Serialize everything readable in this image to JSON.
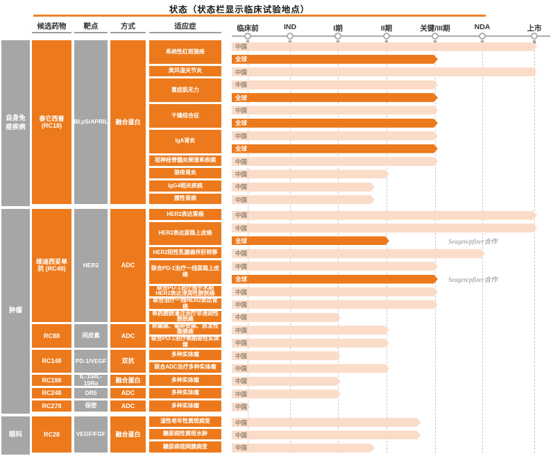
{
  "chart_data": {
    "type": "bar",
    "subtype": "clinical-pipeline-gantt",
    "title": "状态（状态栏显示临床试验地点）",
    "columns": {
      "drug": "候选药物",
      "target": "靶点",
      "modality": "方式",
      "indication": "适应症"
    },
    "stages": [
      "临床前",
      "IND",
      "I期",
      "II期",
      "关键/III期",
      "NDA",
      "上市"
    ],
    "region_labels": {
      "china": "中国",
      "global": "全球"
    },
    "partnership_note": "Seagen/pfizer合作",
    "colors": {
      "accent_orange": "#EC7A1C",
      "light_bar": "#FBDCC8",
      "gray": "#A6A6A6",
      "title_rule": "#F08229",
      "note_gray": "#8C8C8C"
    },
    "axis": {
      "min_stage": 0,
      "max_stage": 6,
      "grid": "dashed-vertical"
    },
    "sections": [
      {
        "category": "自身免疫疾病",
        "groups": [
          {
            "drug": "泰它西普 (RC18)",
            "target": "BLyS/APRIL",
            "modality": "融合蛋白",
            "indications": [
              {
                "name": "系统性红斑狼疮",
                "bars": [
                  {
                    "region": "中国",
                    "style": "light",
                    "stage": 6,
                    "status": "上市"
                  },
                  {
                    "region": "全球",
                    "style": "dark",
                    "stage": 4,
                    "status": "关键/III期"
                  }
                ]
              },
              {
                "name": "类风湿关节炎",
                "bars": [
                  {
                    "region": "中国",
                    "style": "light",
                    "stage": 6,
                    "status": "上市"
                  }
                ]
              },
              {
                "name": "重症肌无力",
                "bars": [
                  {
                    "region": "中国",
                    "style": "light",
                    "stage": 4,
                    "status": "关键/III期"
                  },
                  {
                    "region": "全球",
                    "style": "dark",
                    "stage": 4,
                    "status": "关键/III期"
                  }
                ]
              },
              {
                "name": "干燥综合征",
                "bars": [
                  {
                    "region": "中国",
                    "style": "light",
                    "stage": 4,
                    "status": "关键/III期"
                  },
                  {
                    "region": "全球",
                    "style": "dark",
                    "stage": 4,
                    "status": "关键/III期"
                  }
                ]
              },
              {
                "name": "IgA肾炎",
                "bars": [
                  {
                    "region": "中国",
                    "style": "light",
                    "stage": 4,
                    "status": "关键/III期"
                  },
                  {
                    "region": "全球",
                    "style": "dark",
                    "stage": 4,
                    "status": "关键/III期"
                  }
                ]
              },
              {
                "name": "视神经脊髓炎频谱系疾病",
                "bars": [
                  {
                    "region": "中国",
                    "style": "light",
                    "stage": 4,
                    "status": "关键/III期"
                  }
                ]
              },
              {
                "name": "狼疮肾炎",
                "bars": [
                  {
                    "region": "中国",
                    "style": "light",
                    "stage": 3,
                    "status": "II期"
                  }
                ]
              },
              {
                "name": "IgG4相关疾病",
                "bars": [
                  {
                    "region": "中国",
                    "style": "light",
                    "stage": 2.7,
                    "status": "I期-II期"
                  }
                ]
              },
              {
                "name": "膜性肾病",
                "bars": [
                  {
                    "region": "中国",
                    "style": "light",
                    "stage": 2.7,
                    "status": "I期-II期"
                  }
                ]
              }
            ]
          }
        ]
      },
      {
        "category": "肿瘤",
        "groups": [
          {
            "drug": "维迪西妥单抗 (RC48)",
            "target": "HER2",
            "modality": "ADC",
            "indications": [
              {
                "name": "HER2表达胃癌",
                "bars": [
                  {
                    "region": "中国",
                    "style": "light",
                    "stage": 6,
                    "status": "上市"
                  }
                ]
              },
              {
                "name": "HER2表达尿路上皮癌",
                "bars": [
                  {
                    "region": "中国",
                    "style": "light",
                    "stage": 6,
                    "status": "上市"
                  },
                  {
                    "region": "全球",
                    "style": "dark",
                    "stage": 3,
                    "status": "II期",
                    "note": "Seagen/pfizer合作"
                  }
                ]
              },
              {
                "name": "HER2阳性乳腺癌伴肝转移",
                "bars": [
                  {
                    "region": "中国",
                    "style": "light",
                    "stage": 5,
                    "status": "NDA"
                  }
                ]
              },
              {
                "name": "联合PD-1治疗一线尿路上皮癌",
                "bars": [
                  {
                    "region": "中国",
                    "style": "light",
                    "stage": 4,
                    "status": "关键/III期"
                  },
                  {
                    "region": "全球",
                    "style": "dark",
                    "stage": 4,
                    "status": "关键/III期",
                    "note": "Seagen/pfizer合作"
                  }
                ]
              },
              {
                "name": "联合PD-1治疗围手术期HER2表达浸润性膀胱癌",
                "bars": [
                  {
                    "region": "中国",
                    "style": "light",
                    "stage": 4,
                    "status": "关键/III期"
                  }
                ]
              },
              {
                "name": "联合治疗一线HER2表达胃癌",
                "bars": [
                  {
                    "region": "中国",
                    "style": "light",
                    "stage": 4,
                    "status": "关键/III期"
                  }
                ]
              },
              {
                "name": "单药膀胱灌注治疗非浸润性膀胱癌",
                "bars": [
                  {
                    "region": "中国",
                    "style": "light",
                    "stage": 2,
                    "status": "I期"
                  }
                ]
              }
            ]
          },
          {
            "drug": "RC88",
            "target": "间皮素",
            "modality": "ADC",
            "indications": [
              {
                "name": "卵巢癌、输卵管癌、原发性腹膜癌",
                "bars": [
                  {
                    "region": "中国",
                    "style": "light",
                    "stage": 3,
                    "status": "II期"
                  }
                ]
              },
              {
                "name": "联合PD-1治疗晚期恶性实体瘤",
                "bars": [
                  {
                    "region": "中国",
                    "style": "light",
                    "stage": 3,
                    "status": "II期"
                  }
                ]
              }
            ]
          },
          {
            "drug": "RC148",
            "target": "PD-1/VEGF",
            "modality": "双抗",
            "indications": [
              {
                "name": "多种实体瘤",
                "bars": [
                  {
                    "region": "中国",
                    "style": "light",
                    "stage": 2,
                    "status": "I期"
                  }
                ]
              },
              {
                "name": "联合ADC治疗多种实体瘤",
                "bars": [
                  {
                    "region": "中国",
                    "style": "light",
                    "stage": 3,
                    "status": "II期"
                  }
                ]
              }
            ]
          },
          {
            "drug": "RC198",
            "target": "IL-15/IL-15Rα",
            "modality": "融合蛋白",
            "indications": [
              {
                "name": "多种实体瘤",
                "bars": [
                  {
                    "region": "中国",
                    "style": "light",
                    "stage": 2,
                    "status": "I期"
                  }
                ]
              }
            ]
          },
          {
            "drug": "RC248",
            "target": "DR5",
            "modality": "ADC",
            "indications": [
              {
                "name": "多种实体瘤",
                "bars": [
                  {
                    "region": "中国",
                    "style": "light",
                    "stage": 2,
                    "status": "I期"
                  }
                ]
              }
            ]
          },
          {
            "drug": "RC278",
            "target": "保密",
            "modality": "ADC",
            "indications": [
              {
                "name": "多种实体瘤",
                "bars": [
                  {
                    "region": "中国",
                    "style": "light",
                    "stage": 0,
                    "status": "临床前"
                  }
                ]
              }
            ]
          }
        ]
      },
      {
        "category": "眼科",
        "groups": [
          {
            "drug": "RC28",
            "target": "VEGF/FGF",
            "modality": "融合蛋白",
            "indications": [
              {
                "name": "湿性老年性黄斑病变",
                "bars": [
                  {
                    "region": "中国",
                    "style": "light",
                    "stage": 3.65,
                    "status": "II期-III期"
                  }
                ]
              },
              {
                "name": "糖尿病性黄斑水肿",
                "bars": [
                  {
                    "region": "中国",
                    "style": "light",
                    "stage": 3.65,
                    "status": "II期-III期"
                  }
                ]
              },
              {
                "name": "糖尿病视网膜病变",
                "bars": [
                  {
                    "region": "中国",
                    "style": "light",
                    "stage": 2.7,
                    "status": "I期-II期"
                  }
                ]
              }
            ]
          }
        ]
      }
    ]
  }
}
